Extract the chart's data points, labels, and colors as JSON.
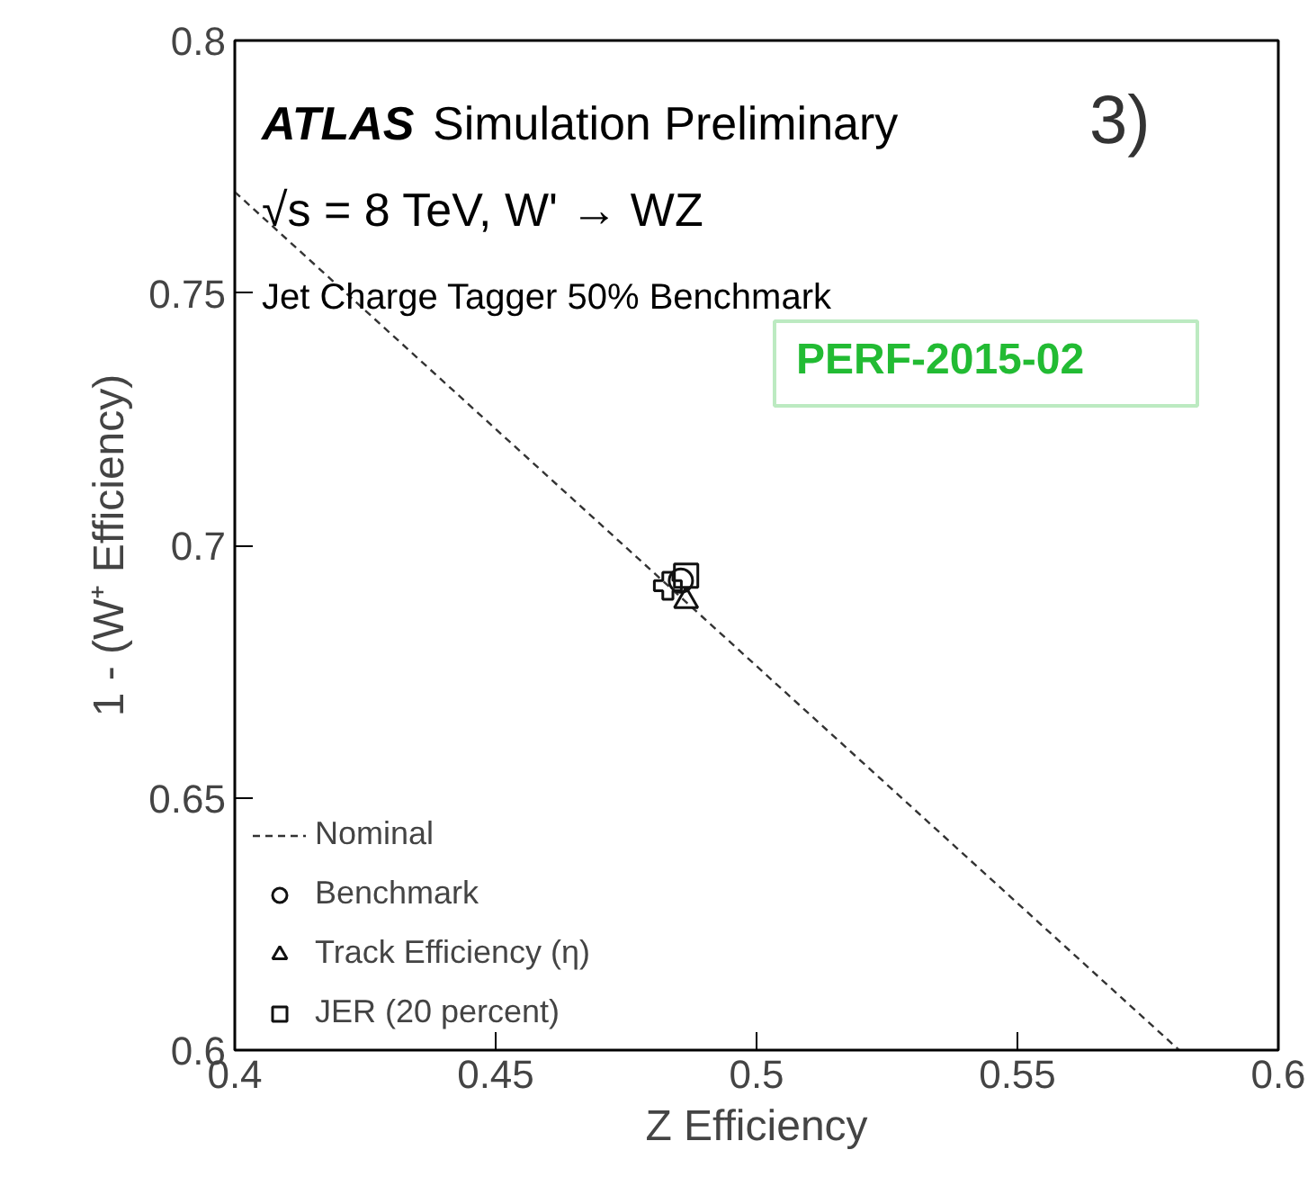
{
  "chart_data": {
    "type": "scatter",
    "xlabel": "Z Efficiency",
    "ylabel": "1 - (W⁺ Efficiency)",
    "xlim": [
      0.4,
      0.6
    ],
    "ylim": [
      0.6,
      0.8
    ],
    "xticks": [
      0.4,
      0.45,
      0.5,
      0.55,
      0.6
    ],
    "yticks": [
      0.6,
      0.65,
      0.7,
      0.75,
      0.8
    ],
    "grid": false,
    "legend": "bottom left",
    "series": [
      {
        "name": "Nominal",
        "type": "line",
        "line_style": "dashed",
        "marker": "none",
        "color": "#333333",
        "x": [
          0.4,
          0.581
        ],
        "values": [
          0.77,
          0.6
        ]
      },
      {
        "name": "Benchmark",
        "marker": "circle",
        "color": "#111111",
        "x": [
          0.4855
        ],
        "values": [
          0.693
        ]
      },
      {
        "name": "Track Efficiency (η)",
        "marker": "triangle",
        "color": "#111111",
        "x": [
          0.4865
        ],
        "values": [
          0.689
        ]
      },
      {
        "name": "JER (20 percent)",
        "marker": "square",
        "color": "#111111",
        "x": [
          0.4865
        ],
        "values": [
          0.694
        ]
      },
      {
        "marker": "cross",
        "color": "#111111",
        "x": [
          0.483
        ],
        "values": [
          0.692
        ]
      }
    ],
    "annotations": [
      "ATLAS",
      "Simulation Preliminary",
      "√s = 8 TeV, W' → WZ",
      "Jet Charge Tagger 50% Benchmark",
      "3)",
      "PERF-2015-02"
    ]
  }
}
